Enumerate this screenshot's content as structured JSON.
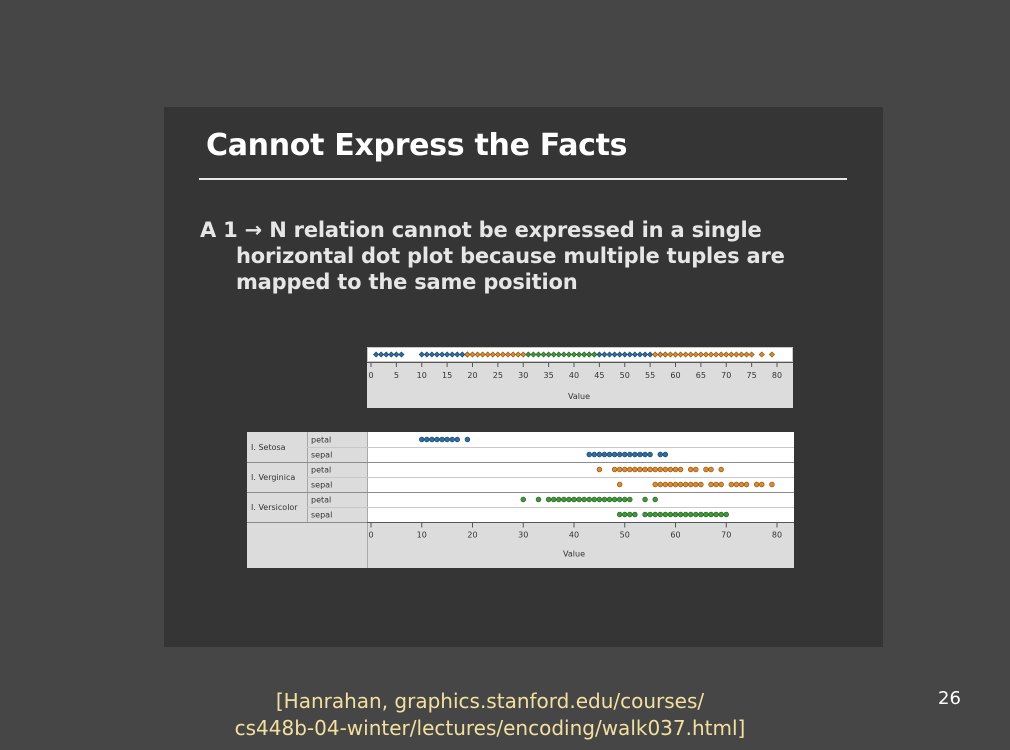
{
  "slide": {
    "title": "Cannot Express the Facts",
    "bullet_lines": [
      "A 1 → N relation cannot be expressed in a single",
      "horizontal dot plot because multiple tuples are",
      "mapped to the same position"
    ],
    "citation_lines": [
      "[Hanrahan, graphics.stanford.edu/courses/",
      "cs448b-04-winter/lectures/encoding/walk037.html]"
    ],
    "page_number": "26"
  },
  "colors": {
    "setosa": "#2e6ea6",
    "verginica": "#e08a28",
    "versicolor": "#3f9a38"
  },
  "chart_data": [
    {
      "type": "scatter",
      "title": "",
      "xlabel": "Value",
      "xlim": [
        0,
        80
      ],
      "xticks": [
        0,
        5,
        10,
        15,
        20,
        25,
        30,
        35,
        40,
        45,
        50,
        55,
        60,
        65,
        70,
        75,
        80
      ],
      "series": [
        {
          "color": "setosa",
          "values": [
            1,
            2,
            3,
            4,
            5,
            6,
            10,
            11,
            12,
            13,
            14,
            15,
            16,
            17,
            18,
            19,
            42,
            43,
            44,
            45,
            46,
            47,
            48,
            49,
            50,
            51,
            52,
            53,
            54,
            55,
            57,
            58
          ]
        },
        {
          "color": "verginica",
          "values": [
            19,
            20,
            21,
            22,
            23,
            24,
            25,
            26,
            27,
            28,
            29,
            30,
            56,
            57,
            58,
            59,
            60,
            61,
            62,
            63,
            64,
            65,
            66,
            67,
            68,
            69,
            70,
            71,
            72,
            73,
            74,
            75,
            77,
            79
          ]
        },
        {
          "color": "versicolor",
          "values": [
            31,
            32,
            33,
            34,
            35,
            36,
            37,
            38,
            39,
            40,
            41,
            42,
            43,
            44
          ]
        }
      ]
    },
    {
      "type": "scatter",
      "title": "",
      "xlabel": "Value",
      "xlim": [
        0,
        80
      ],
      "xticks": [
        0,
        10,
        20,
        30,
        40,
        50,
        60,
        70,
        80
      ],
      "rows": [
        {
          "species": "I. Setosa",
          "measure": "petal",
          "color": "setosa",
          "values": [
            10,
            11,
            12,
            13,
            14,
            15,
            16,
            17,
            19
          ]
        },
        {
          "species": "",
          "measure": "sepal",
          "color": "setosa",
          "values": [
            43,
            44,
            45,
            46,
            47,
            48,
            49,
            50,
            51,
            52,
            53,
            54,
            55,
            57,
            58
          ]
        },
        {
          "species": "I. Verginica",
          "measure": "petal",
          "color": "verginica",
          "values": [
            45,
            48,
            49,
            50,
            51,
            52,
            53,
            54,
            55,
            56,
            57,
            58,
            59,
            60,
            61,
            63,
            64,
            66,
            67,
            69
          ]
        },
        {
          "species": "",
          "measure": "sepal",
          "color": "verginica",
          "values": [
            49,
            56,
            57,
            58,
            59,
            60,
            61,
            62,
            63,
            64,
            65,
            67,
            68,
            69,
            71,
            72,
            73,
            74,
            76,
            77,
            79
          ]
        },
        {
          "species": "I. Versicolor",
          "measure": "petal",
          "color": "versicolor",
          "values": [
            30,
            33,
            35,
            36,
            37,
            38,
            39,
            40,
            41,
            42,
            43,
            44,
            45,
            46,
            47,
            48,
            49,
            50,
            51,
            54,
            56
          ]
        },
        {
          "species": "",
          "measure": "sepal",
          "color": "versicolor",
          "values": [
            49,
            50,
            51,
            52,
            54,
            55,
            56,
            57,
            58,
            59,
            60,
            61,
            62,
            63,
            64,
            65,
            66,
            67,
            68,
            69,
            70
          ]
        }
      ]
    }
  ]
}
